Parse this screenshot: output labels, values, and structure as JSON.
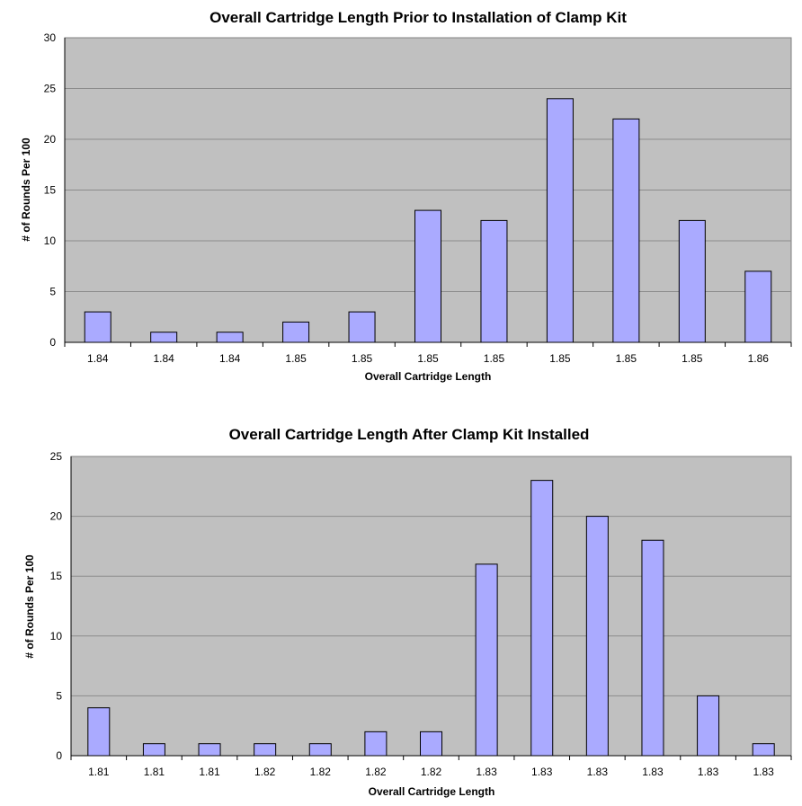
{
  "chart_data": [
    {
      "type": "bar",
      "title": "Overall Cartridge Length Prior to Installation of Clamp Kit",
      "xlabel": "Overall Cartridge Length",
      "ylabel": "# of Rounds Per 100",
      "categories": [
        "1.84",
        "1.84",
        "1.84",
        "1.85",
        "1.85",
        "1.85",
        "1.85",
        "1.85",
        "1.85",
        "1.85",
        "1.86"
      ],
      "values": [
        3,
        1,
        1,
        2,
        3,
        13,
        12,
        24,
        22,
        12,
        7
      ],
      "ylim": [
        0,
        30
      ],
      "yticks": [
        0,
        5,
        10,
        15,
        20,
        25,
        30
      ],
      "grid": true,
      "colors": {
        "bar": "#aaaaff",
        "plot_bg": "#c0c0c0",
        "grid": "#8c8c8c"
      }
    },
    {
      "type": "bar",
      "title": "Overall Cartridge Length After Clamp Kit Installed",
      "xlabel": "Overall Cartridge Length",
      "ylabel": "# of Rounds Per 100",
      "categories": [
        "1.81",
        "1.81",
        "1.81",
        "1.82",
        "1.82",
        "1.82",
        "1.82",
        "1.83",
        "1.83",
        "1.83",
        "1.83",
        "1.83",
        "1.83"
      ],
      "values": [
        4,
        1,
        1,
        1,
        1,
        2,
        2,
        16,
        23,
        20,
        18,
        5,
        1
      ],
      "ylim": [
        0,
        25
      ],
      "yticks": [
        0,
        5,
        10,
        15,
        20,
        25
      ],
      "grid": true,
      "colors": {
        "bar": "#aaaaff",
        "plot_bg": "#c0c0c0",
        "grid": "#8c8c8c"
      }
    }
  ]
}
